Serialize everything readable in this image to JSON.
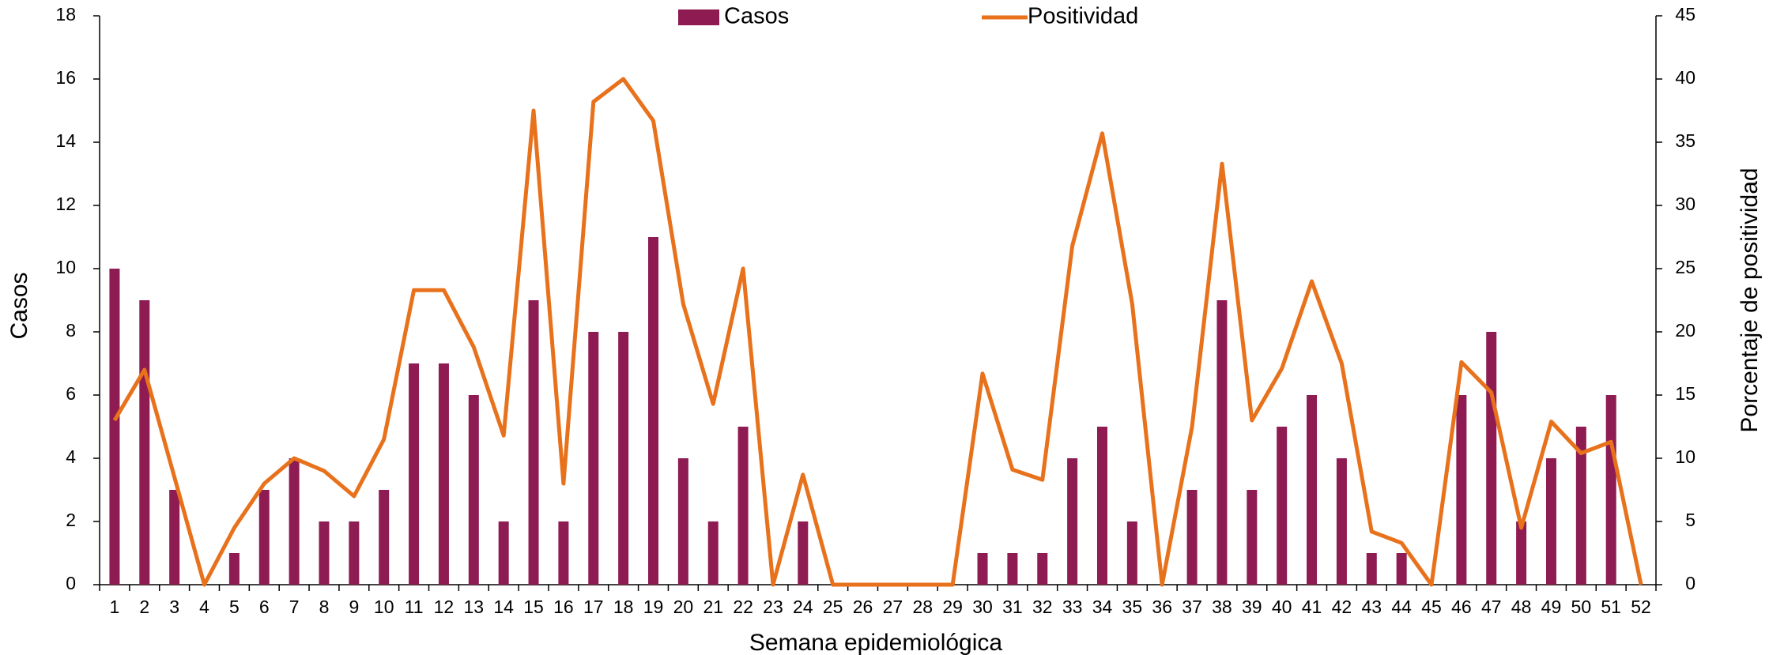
{
  "chart_data": {
    "type": "bar_line",
    "x_label": "Semana epidemiológica",
    "y_label": "Casos",
    "y2_label": "Porcentaje de positividad",
    "categories": [
      "1",
      "2",
      "3",
      "4",
      "5",
      "6",
      "7",
      "8",
      "9",
      "10",
      "11",
      "12",
      "13",
      "14",
      "15",
      "16",
      "17",
      "18",
      "19",
      "20",
      "21",
      "22",
      "23",
      "24",
      "25",
      "26",
      "27",
      "28",
      "29",
      "30",
      "31",
      "32",
      "33",
      "34",
      "35",
      "36",
      "37",
      "38",
      "39",
      "40",
      "41",
      "42",
      "43",
      "44",
      "45",
      "46",
      "47",
      "48",
      "49",
      "50",
      "51",
      "52"
    ],
    "series": [
      {
        "name": "Casos",
        "type": "bar",
        "color": "#8e1b52",
        "values": [
          10,
          9,
          3,
          0,
          1,
          3,
          4,
          2,
          2,
          3,
          7,
          7,
          6,
          2,
          9,
          2,
          8,
          8,
          11,
          4,
          2,
          5,
          0,
          2,
          0,
          0,
          0,
          0,
          0,
          1,
          1,
          1,
          4,
          5,
          2,
          0,
          3,
          9,
          3,
          5,
          6,
          4,
          1,
          1,
          0,
          6,
          8,
          2,
          4,
          5,
          6,
          0
        ]
      },
      {
        "name": "Positividad",
        "type": "line",
        "axis": "y2",
        "color": "#e8711c",
        "values": [
          13,
          17,
          8.5,
          0,
          4.5,
          8,
          10,
          9,
          7,
          11.5,
          23.3,
          23.3,
          18.8,
          11.8,
          37.5,
          8,
          38.2,
          40,
          36.7,
          22.2,
          14.3,
          25,
          0,
          8.7,
          0,
          0,
          0,
          0,
          0,
          16.7,
          9.1,
          8.3,
          26.8,
          35.7,
          22.2,
          0,
          12.5,
          33.3,
          13,
          17.1,
          24,
          17.5,
          4.2,
          3.3,
          0,
          17.6,
          15.2,
          4.5,
          12.9,
          10.4,
          11.3,
          0
        ]
      }
    ],
    "ylim": [
      0,
      18
    ],
    "yticks": [
      0,
      2,
      4,
      6,
      8,
      10,
      12,
      14,
      16,
      18
    ],
    "y2lim": [
      0,
      45
    ],
    "y2ticks": [
      0,
      5,
      10,
      15,
      20,
      25,
      30,
      35,
      40,
      45
    ],
    "legend": "top"
  }
}
